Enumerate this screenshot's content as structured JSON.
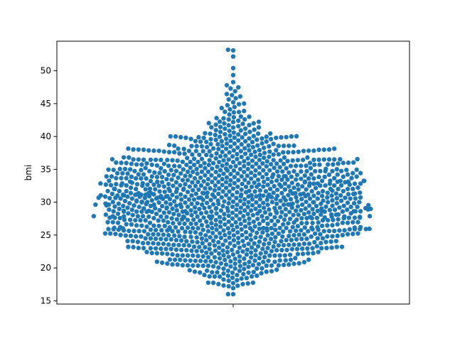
{
  "chart_data": {
    "type": "scatter",
    "subtype": "swarm",
    "title": "",
    "xlabel": "",
    "ylabel": "bmi",
    "ylim": [
      14.5,
      54.5
    ],
    "yticks": [
      15,
      20,
      25,
      30,
      35,
      40,
      45,
      50
    ],
    "grid": false,
    "legend": "none",
    "colors": {
      "points": "#1f77b4",
      "axes": "#000000",
      "background": "#ffffff"
    },
    "distribution": {
      "n_points_approx": 1300,
      "min": 16.0,
      "max": 53.1,
      "median_approx": 30.4,
      "bins": [
        {
          "bin": [
            16,
            17
          ],
          "count": 2
        },
        {
          "bin": [
            17,
            18
          ],
          "count": 10
        },
        {
          "bin": [
            18,
            19
          ],
          "count": 14
        },
        {
          "bin": [
            19,
            20
          ],
          "count": 22
        },
        {
          "bin": [
            20,
            21
          ],
          "count": 34
        },
        {
          "bin": [
            21,
            22
          ],
          "count": 42
        },
        {
          "bin": [
            22,
            23
          ],
          "count": 50
        },
        {
          "bin": [
            23,
            24
          ],
          "count": 56
        },
        {
          "bin": [
            24,
            25
          ],
          "count": 62
        },
        {
          "bin": [
            25,
            26
          ],
          "count": 72
        },
        {
          "bin": [
            26,
            27
          ],
          "count": 74
        },
        {
          "bin": [
            27,
            28
          ],
          "count": 76
        },
        {
          "bin": [
            28,
            29
          ],
          "count": 80
        },
        {
          "bin": [
            29,
            30
          ],
          "count": 82
        },
        {
          "bin": [
            30,
            31
          ],
          "count": 82
        },
        {
          "bin": [
            31,
            32
          ],
          "count": 80
        },
        {
          "bin": [
            32,
            33
          ],
          "count": 78
        },
        {
          "bin": [
            33,
            34
          ],
          "count": 74
        },
        {
          "bin": [
            34,
            35
          ],
          "count": 68
        },
        {
          "bin": [
            35,
            36
          ],
          "count": 62
        },
        {
          "bin": [
            36,
            37
          ],
          "count": 54
        },
        {
          "bin": [
            37,
            38
          ],
          "count": 44
        },
        {
          "bin": [
            38,
            39
          ],
          "count": 36
        },
        {
          "bin": [
            39,
            40
          ],
          "count": 28
        },
        {
          "bin": [
            40,
            41
          ],
          "count": 20
        },
        {
          "bin": [
            41,
            42
          ],
          "count": 14
        },
        {
          "bin": [
            42,
            43
          ],
          "count": 10
        },
        {
          "bin": [
            43,
            44
          ],
          "count": 7
        },
        {
          "bin": [
            44,
            45
          ],
          "count": 5
        },
        {
          "bin": [
            45,
            46
          ],
          "count": 4
        },
        {
          "bin": [
            46,
            47
          ],
          "count": 4
        },
        {
          "bin": [
            47,
            48
          ],
          "count": 3
        },
        {
          "bin": [
            48,
            49
          ],
          "count": 1
        },
        {
          "bin": [
            49,
            50
          ],
          "count": 1
        },
        {
          "bin": [
            50,
            51
          ],
          "count": 1
        },
        {
          "bin": [
            52,
            53
          ],
          "count": 1
        },
        {
          "bin": [
            53,
            54
          ],
          "count": 1
        }
      ]
    }
  }
}
